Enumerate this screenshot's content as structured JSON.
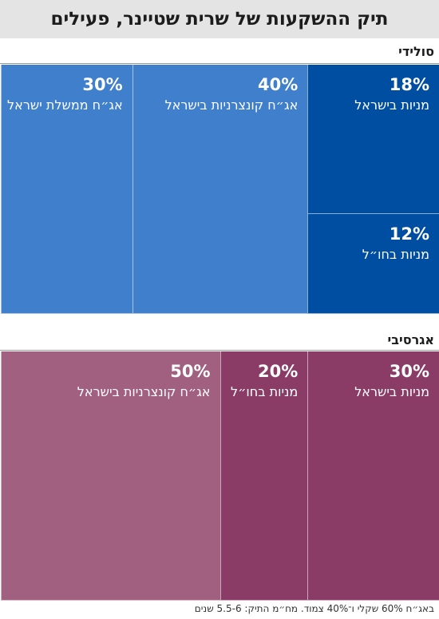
{
  "title": "תיק ההשקעות של שרית שטיינר, פעילים",
  "footnote": "באג״ח 60% שקלי ו־40% צמוד. מח״מ התיק: 5.5-6 שנים",
  "chart_data": [
    {
      "type": "treemap",
      "title": "סולידי",
      "series": [
        {
          "label": "מניות בישראל",
          "pct_text": "18%",
          "value": 18,
          "color": "#004ea1"
        },
        {
          "label": "מניות בחו״ל",
          "pct_text": "12%",
          "value": 12,
          "color": "#004ea1"
        },
        {
          "label": "אג״ח קונצרניות בישראל",
          "pct_text": "40%",
          "value": 40,
          "color": "#3f7fcb"
        },
        {
          "label": "אג״ח ממשלת ישראל",
          "pct_text": "30%",
          "value": 30,
          "color": "#3f7fcb"
        }
      ]
    },
    {
      "type": "treemap",
      "title": "אגרסיבי",
      "series": [
        {
          "label": "מניות בישראל",
          "pct_text": "30%",
          "value": 30,
          "color": "#8a3c66"
        },
        {
          "label": "מניות בחו״ל",
          "pct_text": "20%",
          "value": 20,
          "color": "#8a3c66"
        },
        {
          "label": "אג״ח קונצרניות בישראל",
          "pct_text": "50%",
          "value": 50,
          "color": "#a16080"
        }
      ]
    }
  ]
}
